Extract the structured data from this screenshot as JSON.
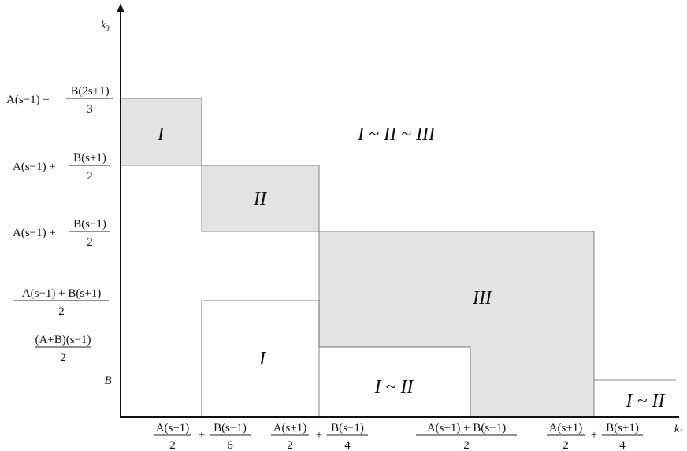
{
  "axes": {
    "x_label": "k",
    "x_sub": "1",
    "y_label": "k",
    "y_sub": "3"
  },
  "y_ticks": [
    {
      "pre": "A(s−1) +",
      "num": "B(2s+1)",
      "den": "3"
    },
    {
      "pre": "A(s−1) +",
      "num": "B(s+1)",
      "den": "2"
    },
    {
      "pre": "A(s−1) +",
      "num": "B(s−1)",
      "den": "2"
    },
    {
      "pre": "",
      "num": "A(s−1) + B(s+1)",
      "den": "2"
    },
    {
      "pre": "",
      "num": "(A+B)(s−1)",
      "den": "2"
    },
    {
      "pre": "",
      "num": "",
      "den": "",
      "plain": "B"
    }
  ],
  "x_ticks": [
    {
      "n1": "A(s+1)",
      "d1": "2",
      "op": "+",
      "n2": "B(s−1)",
      "d2": "6"
    },
    {
      "n1": "A(s+1)",
      "d1": "2",
      "op": "+",
      "n2": "B(s−1)",
      "d2": "4"
    },
    {
      "n1": "A(s+1) + B(s−1)",
      "d1": "2",
      "op": "",
      "n2": "",
      "d2": ""
    },
    {
      "n1": "A(s+1)",
      "d1": "2",
      "op": "+",
      "n2": "B(s+1)",
      "d2": "4"
    }
  ],
  "regions": {
    "r1": "I",
    "r2": "II",
    "r3": "III",
    "r_top": "I ~ II ~ III",
    "r_low1": "I",
    "r_low2": "I ~ II",
    "r_low3": "I ~ II"
  },
  "colors": {
    "shade": "#e3e3e3",
    "line": "#555555"
  }
}
